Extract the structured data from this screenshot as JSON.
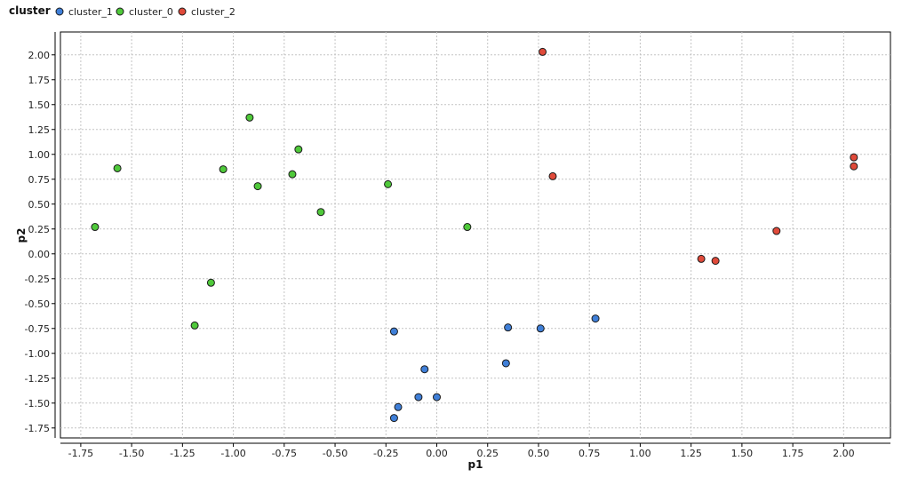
{
  "chart_data": {
    "type": "scatter",
    "legend": {
      "title": "cluster",
      "placement": "top-left"
    },
    "xlabel": "p1",
    "ylabel": "p2",
    "xlim": [
      -1.85,
      2.23
    ],
    "ylim": [
      -1.85,
      2.23
    ],
    "x_ticks": [
      -1.75,
      -1.5,
      -1.25,
      -1.0,
      -0.75,
      -0.5,
      -0.25,
      0.0,
      0.25,
      0.5,
      0.75,
      1.0,
      1.25,
      1.5,
      1.75,
      2.0
    ],
    "x_tick_labels": [
      "-1.75",
      "-1.50",
      "-1.25",
      "-1.00",
      "-0.75",
      "-0.50",
      "-0.25",
      "0.00",
      "0.25",
      "0.50",
      "0.75",
      "1.00",
      "1.25",
      "1.50",
      "1.75",
      "2.00"
    ],
    "y_ticks": [
      2.0,
      1.75,
      1.5,
      1.25,
      1.0,
      0.75,
      0.5,
      0.25,
      0.0,
      -0.25,
      -0.5,
      -0.75,
      -1.0,
      -1.25,
      -1.5,
      -1.75
    ],
    "y_tick_labels": [
      "2.00",
      "1.75",
      "1.50",
      "1.25",
      "1.00",
      "0.75",
      "0.50",
      "0.25",
      "0.00",
      "-0.25",
      "-0.50",
      "-0.75",
      "-1.00",
      "-1.25",
      "-1.50",
      "-1.75"
    ],
    "grid": true,
    "series": [
      {
        "name": "cluster_1",
        "color": "#3f7fd8",
        "points": [
          {
            "x": -0.21,
            "y": -0.78
          },
          {
            "x": 0.35,
            "y": -0.74
          },
          {
            "x": 0.51,
            "y": -0.75
          },
          {
            "x": 0.78,
            "y": -0.65
          },
          {
            "x": 0.34,
            "y": -1.1
          },
          {
            "x": -0.06,
            "y": -1.16
          },
          {
            "x": -0.09,
            "y": -1.44
          },
          {
            "x": 0.0,
            "y": -1.44
          },
          {
            "x": -0.19,
            "y": -1.54
          },
          {
            "x": -0.21,
            "y": -1.65
          }
        ]
      },
      {
        "name": "cluster_0",
        "color": "#4fc93a",
        "points": [
          {
            "x": -1.68,
            "y": 0.27
          },
          {
            "x": -1.57,
            "y": 0.86
          },
          {
            "x": -1.05,
            "y": 0.85
          },
          {
            "x": -0.92,
            "y": 1.37
          },
          {
            "x": -0.88,
            "y": 0.68
          },
          {
            "x": -0.71,
            "y": 0.8
          },
          {
            "x": -0.68,
            "y": 1.05
          },
          {
            "x": -0.57,
            "y": 0.42
          },
          {
            "x": -0.24,
            "y": 0.7
          },
          {
            "x": 0.15,
            "y": 0.27
          },
          {
            "x": -1.11,
            "y": -0.29
          },
          {
            "x": -1.19,
            "y": -0.72
          }
        ]
      },
      {
        "name": "cluster_2",
        "color": "#e04a3a",
        "points": [
          {
            "x": 0.52,
            "y": 2.03
          },
          {
            "x": 0.57,
            "y": 0.78
          },
          {
            "x": 2.05,
            "y": 0.97
          },
          {
            "x": 2.05,
            "y": 0.88
          },
          {
            "x": 1.67,
            "y": 0.23
          },
          {
            "x": 1.3,
            "y": -0.05
          },
          {
            "x": 1.37,
            "y": -0.07
          }
        ]
      }
    ]
  }
}
